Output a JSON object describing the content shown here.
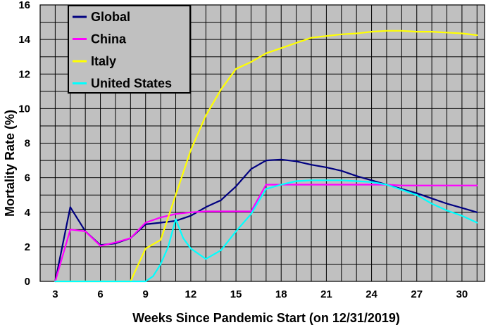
{
  "chart_data": {
    "type": "line",
    "title": "",
    "xlabel": "Weeks Since Pandemic Start (on 12/31/2019)",
    "ylabel": "Mortality Rate (%)",
    "xlim": [
      2,
      31.5
    ],
    "ylim": [
      0,
      16
    ],
    "x_ticks": [
      3,
      6,
      9,
      12,
      15,
      18,
      21,
      24,
      27,
      30
    ],
    "y_ticks": [
      0,
      2,
      4,
      6,
      8,
      10,
      12,
      14,
      16
    ],
    "grid": true,
    "legend_position": "top-left",
    "plot_background": "#c0c0c0",
    "series": [
      {
        "name": "Global",
        "color": "#000080",
        "x": [
          3,
          4,
          5,
          6,
          7,
          8,
          9,
          10,
          11,
          12,
          13,
          14,
          15,
          16,
          17,
          18,
          19,
          20,
          21,
          22,
          23,
          24,
          25,
          26,
          27,
          28,
          29,
          30,
          31
        ],
        "y": [
          0,
          4.3,
          2.9,
          2.1,
          2.2,
          2.5,
          3.3,
          3.4,
          3.5,
          3.8,
          4.3,
          4.7,
          5.5,
          6.5,
          7.0,
          7.05,
          6.95,
          6.75,
          6.6,
          6.4,
          6.1,
          5.85,
          5.6,
          5.35,
          5.1,
          4.8,
          4.5,
          4.25,
          4.0
        ]
      },
      {
        "name": "China",
        "color": "#ff00ff",
        "x": [
          3,
          4,
          5,
          6,
          7,
          8,
          9,
          10,
          11,
          12,
          13,
          14,
          15,
          16,
          17,
          18,
          19,
          20,
          21,
          22,
          23,
          24,
          25,
          26,
          27,
          28,
          29,
          30,
          31
        ],
        "y": [
          0,
          3.0,
          2.9,
          2.05,
          2.25,
          2.5,
          3.4,
          3.7,
          3.9,
          4.0,
          4.05,
          4.05,
          4.05,
          4.05,
          5.6,
          5.6,
          5.6,
          5.6,
          5.6,
          5.6,
          5.6,
          5.6,
          5.6,
          5.55,
          5.55,
          5.55,
          5.55,
          5.55,
          5.55
        ]
      },
      {
        "name": "Italy",
        "color": "#ffff00",
        "x": [
          3,
          4,
          5,
          6,
          7,
          8,
          9,
          10,
          11,
          12,
          13,
          14,
          15,
          16,
          17,
          18,
          19,
          20,
          21,
          22,
          23,
          24,
          25,
          26,
          27,
          28,
          29,
          30,
          31
        ],
        "y": [
          0,
          0,
          0,
          0,
          0,
          0,
          1.9,
          2.4,
          5.0,
          7.6,
          9.6,
          11.1,
          12.3,
          12.7,
          13.2,
          13.5,
          13.8,
          14.1,
          14.2,
          14.3,
          14.35,
          14.45,
          14.5,
          14.5,
          14.45,
          14.45,
          14.4,
          14.35,
          14.25
        ]
      },
      {
        "name": "United States",
        "color": "#00ffff",
        "x": [
          3,
          4,
          5,
          6,
          7,
          8,
          9,
          9.5,
          10,
          10.5,
          11,
          11.5,
          12,
          13,
          14,
          15,
          16,
          17,
          18,
          19,
          20,
          21,
          22,
          23,
          24,
          25,
          26,
          27,
          28,
          29,
          30,
          31
        ],
        "y": [
          0,
          0,
          0,
          0,
          0,
          0,
          0,
          0.3,
          1.0,
          2.0,
          3.6,
          2.5,
          1.9,
          1.3,
          1.8,
          2.9,
          3.9,
          5.35,
          5.6,
          5.8,
          5.85,
          5.85,
          5.85,
          5.8,
          5.75,
          5.6,
          5.3,
          5.0,
          4.5,
          4.1,
          3.8,
          3.4
        ]
      }
    ]
  }
}
